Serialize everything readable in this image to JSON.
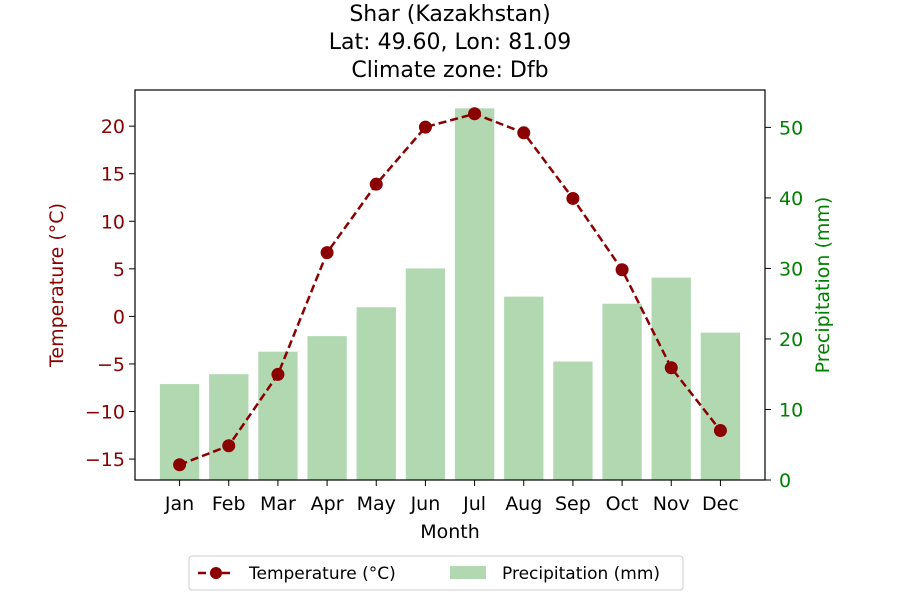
{
  "chart_data": {
    "type": "bar+line",
    "title_lines": [
      "Shar (Kazakhstan)",
      "Lat: 49.60, Lon: 81.09",
      "Climate zone: Dfb"
    ],
    "xlabel": "Month",
    "ylabel_left": "Temperature (°C)",
    "ylabel_right": "Precipitation (mm)",
    "categories": [
      "Jan",
      "Feb",
      "Mar",
      "Apr",
      "May",
      "Jun",
      "Jul",
      "Aug",
      "Sep",
      "Oct",
      "Nov",
      "Dec"
    ],
    "temperature": {
      "name": "Temperature (°C)",
      "values": [
        -15.6,
        -13.6,
        -6.1,
        6.7,
        13.9,
        19.9,
        21.3,
        19.3,
        12.4,
        4.9,
        -5.4,
        -12.0
      ],
      "ylim": [
        -17.2,
        23.8
      ],
      "ticks": [
        -15,
        -10,
        -5,
        0,
        5,
        10,
        15,
        20
      ],
      "tick_labels": [
        "−15",
        "−10",
        "−5",
        "0",
        "5",
        "10",
        "15",
        "20"
      ],
      "color": "#8b0000"
    },
    "precipitation": {
      "name": "Precipitation (mm)",
      "values": [
        13.6,
        15.0,
        18.2,
        20.4,
        24.5,
        30.0,
        52.7,
        26.0,
        16.8,
        25.0,
        28.7,
        20.9
      ],
      "ylim": [
        0,
        55.3
      ],
      "ticks": [
        0,
        10,
        20,
        30,
        40,
        50
      ],
      "tick_labels": [
        "0",
        "10",
        "20",
        "30",
        "40",
        "50"
      ],
      "color": "#b2d8b2",
      "axis_color": "#008000"
    },
    "legend": [
      "Temperature (°C)",
      "Precipitation (mm)"
    ],
    "legend_position": "bottom-center",
    "grid": false
  }
}
